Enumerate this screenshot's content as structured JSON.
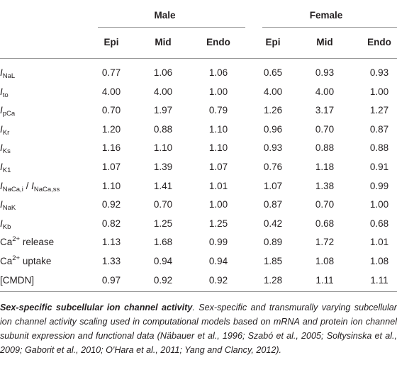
{
  "table": {
    "groups": [
      {
        "label": "Male",
        "columns": [
          "Epi",
          "Mid",
          "Endo"
        ]
      },
      {
        "label": "Female",
        "columns": [
          "Epi",
          "Mid",
          "Endo"
        ]
      }
    ],
    "rows": [
      {
        "label": [
          {
            "italic": "I"
          },
          {
            "sub": "NaL"
          }
        ],
        "values": [
          "0.77",
          "1.06",
          "1.06",
          "0.65",
          "0.93",
          "0.93"
        ]
      },
      {
        "label": [
          {
            "italic": "I"
          },
          {
            "sub": "to"
          }
        ],
        "values": [
          "4.00",
          "4.00",
          "1.00",
          "4.00",
          "4.00",
          "1.00"
        ]
      },
      {
        "label": [
          {
            "italic": "I"
          },
          {
            "sub": "pCa"
          }
        ],
        "values": [
          "0.70",
          "1.97",
          "0.79",
          "1.26",
          "3.17",
          "1.27"
        ]
      },
      {
        "label": [
          {
            "italic": "I"
          },
          {
            "sub": "Kr"
          }
        ],
        "values": [
          "1.20",
          "0.88",
          "1.10",
          "0.96",
          "0.70",
          "0.87"
        ]
      },
      {
        "label": [
          {
            "italic": "I"
          },
          {
            "sub": "Ks"
          }
        ],
        "values": [
          "1.16",
          "1.10",
          "1.10",
          "0.93",
          "0.88",
          "0.88"
        ]
      },
      {
        "label": [
          {
            "italic": "I"
          },
          {
            "sub": "K1"
          }
        ],
        "values": [
          "1.07",
          "1.39",
          "1.07",
          "0.76",
          "1.18",
          "0.91"
        ]
      },
      {
        "label": [
          {
            "italic": "I"
          },
          {
            "sub": "NaCa,i"
          },
          {
            "text": " / "
          },
          {
            "italic": "I"
          },
          {
            "sub": "NaCa,ss"
          }
        ],
        "values": [
          "1.10",
          "1.41",
          "1.01",
          "1.07",
          "1.38",
          "0.99"
        ]
      },
      {
        "label": [
          {
            "italic": "I"
          },
          {
            "sub": "NaK"
          }
        ],
        "values": [
          "0.92",
          "0.70",
          "1.00",
          "0.87",
          "0.70",
          "1.00"
        ]
      },
      {
        "label": [
          {
            "italic": "I"
          },
          {
            "sub": "Kb"
          }
        ],
        "values": [
          "0.82",
          "1.25",
          "1.25",
          "0.42",
          "0.68",
          "0.68"
        ]
      },
      {
        "label": [
          {
            "text": "Ca"
          },
          {
            "sup": "2+"
          },
          {
            "text": " release"
          }
        ],
        "values": [
          "1.13",
          "1.68",
          "0.99",
          "0.89",
          "1.72",
          "1.01"
        ]
      },
      {
        "label": [
          {
            "text": "Ca"
          },
          {
            "sup": "2+"
          },
          {
            "text": " uptake"
          }
        ],
        "values": [
          "1.33",
          "0.94",
          "0.94",
          "1.85",
          "1.08",
          "1.08"
        ]
      },
      {
        "label": [
          {
            "text": "[CMDN]"
          }
        ],
        "values": [
          "0.97",
          "0.92",
          "0.92",
          "1.28",
          "1.11",
          "1.11"
        ]
      }
    ]
  },
  "caption": {
    "lead": "Sex-specific subcellular ion channel activity",
    "text": ". Sex-specific and transmurally varying subcellular ion channel activity scaling used in computational models based on mRNA and protein ion channel subunit expression and functional data (Näbauer et al., 1996; Szabó et al., 2005; Soltysinska et al., 2009; Gaborit et al., 2010; O'Hara et al., 2011; Yang and Clancy, 2012)."
  }
}
